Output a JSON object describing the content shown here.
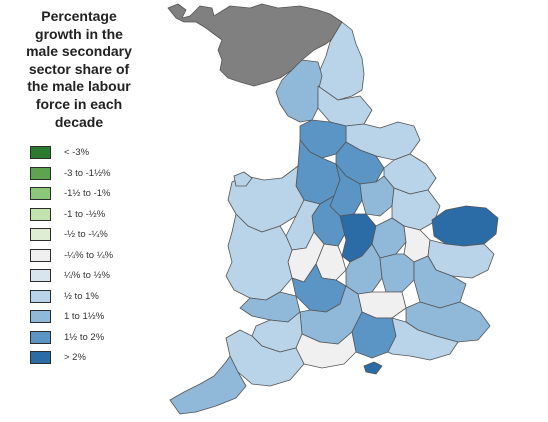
{
  "title": "Percentage growth in the male secondary sector share of the male labour force in each decade",
  "legend": [
    {
      "label": "< -3%",
      "color": "#2a7a2f"
    },
    {
      "label": "-3 to -1½%",
      "color": "#5ea34f"
    },
    {
      "label": "-1½ to -1%",
      "color": "#8dc77a"
    },
    {
      "label": "-1 to -½%",
      "color": "#c2e3ad"
    },
    {
      "label": "-½ to -¼%",
      "color": "#dfeed2"
    },
    {
      "label": "-¼% to ¼%",
      "color": "#f0f0f0"
    },
    {
      "label": "¼% to ½%",
      "color": "#d8e4ee"
    },
    {
      "label": "½ to 1%",
      "color": "#b9d3e8"
    },
    {
      "label": "1 to 1½%",
      "color": "#8fb8d9"
    },
    {
      "label": "1½ to 2%",
      "color": "#5b95c6"
    },
    {
      "label": "> 2%",
      "color": "#2b6ca6"
    }
  ],
  "colors": {
    "scotland": "#808080",
    "outline": "#555555"
  }
}
